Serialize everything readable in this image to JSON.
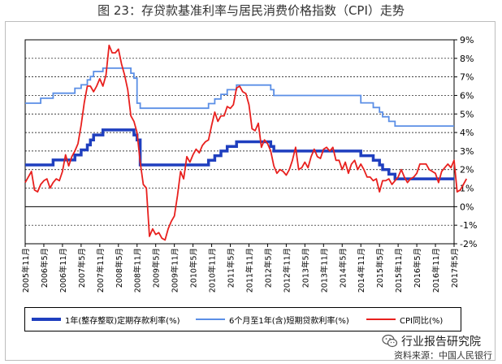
{
  "title": "图 23：存贷款基准利率与居民消费价格指数（CPI）走势",
  "watermark": {
    "icon": "wechat-icon",
    "text": "行业报告研究院"
  },
  "source": "资料来源：中国人民银行",
  "chart_data": {
    "type": "line",
    "ylim": [
      -2,
      9
    ],
    "yticks": [
      "-2%",
      "-1%",
      "0%",
      "1%",
      "2%",
      "3%",
      "4%",
      "5%",
      "6%",
      "7%",
      "8%",
      "9%"
    ],
    "x_start": "2005-11",
    "x_end": "2017-05",
    "xticks": [
      "2005年11月",
      "2006年5月",
      "2006年11月",
      "2007年5月",
      "2007年11月",
      "2008年5月",
      "2008年11月",
      "2009年5月",
      "2009年11月",
      "2010年5月",
      "2010年11月",
      "2011年5月",
      "2011年11月",
      "2012年5月",
      "2012年11月",
      "2013年5月",
      "2013年11月",
      "2014年5月",
      "2014年11月",
      "2015年5月",
      "2015年11月",
      "2016年5月",
      "2016年11月",
      "2017年5月"
    ],
    "grid": "dashed horizontal",
    "legend_position": "bottom",
    "colors": {
      "deposit": "#1f3fbf",
      "loan": "#5b8fe6",
      "cpi": "#e8201e"
    },
    "series": [
      {
        "name": "1年(整存整取)定期存款利率(%)",
        "key": "deposit",
        "steps": [
          [
            "2005-11",
            2.25
          ],
          [
            "2006-08",
            2.52
          ],
          [
            "2007-03",
            2.79
          ],
          [
            "2007-05",
            3.06
          ],
          [
            "2007-07",
            3.33
          ],
          [
            "2007-08",
            3.6
          ],
          [
            "2007-09",
            3.87
          ],
          [
            "2007-12",
            4.14
          ],
          [
            "2008-10",
            3.87
          ],
          [
            "2008-11",
            3.6
          ],
          [
            "2008-12",
            2.25
          ],
          [
            "2010-10",
            2.5
          ],
          [
            "2010-12",
            2.75
          ],
          [
            "2011-02",
            3.0
          ],
          [
            "2011-04",
            3.25
          ],
          [
            "2011-07",
            3.5
          ],
          [
            "2012-06",
            3.25
          ],
          [
            "2012-07",
            3.0
          ],
          [
            "2014-11",
            2.75
          ],
          [
            "2015-03",
            2.5
          ],
          [
            "2015-05",
            2.25
          ],
          [
            "2015-06",
            2.0
          ],
          [
            "2015-08",
            1.75
          ],
          [
            "2015-10",
            1.5
          ],
          [
            "2017-05",
            1.5
          ]
        ]
      },
      {
        "name": "6个月至1年(含)短期贷款利率(%)",
        "key": "loan",
        "steps": [
          [
            "2005-11",
            5.58
          ],
          [
            "2006-04",
            5.85
          ],
          [
            "2006-08",
            6.12
          ],
          [
            "2007-03",
            6.39
          ],
          [
            "2007-05",
            6.57
          ],
          [
            "2007-07",
            6.84
          ],
          [
            "2007-08",
            7.02
          ],
          [
            "2007-09",
            7.29
          ],
          [
            "2007-12",
            7.47
          ],
          [
            "2008-09",
            7.2
          ],
          [
            "2008-10",
            6.93
          ],
          [
            "2008-11",
            5.58
          ],
          [
            "2008-12",
            5.31
          ],
          [
            "2010-10",
            5.56
          ],
          [
            "2010-12",
            5.81
          ],
          [
            "2011-02",
            6.06
          ],
          [
            "2011-04",
            6.31
          ],
          [
            "2011-07",
            6.56
          ],
          [
            "2012-06",
            6.31
          ],
          [
            "2012-07",
            6.0
          ],
          [
            "2014-11",
            5.6
          ],
          [
            "2015-03",
            5.35
          ],
          [
            "2015-05",
            5.1
          ],
          [
            "2015-06",
            4.85
          ],
          [
            "2015-08",
            4.6
          ],
          [
            "2015-10",
            4.35
          ],
          [
            "2017-05",
            4.35
          ]
        ]
      },
      {
        "name": "CPI同比(%)",
        "key": "cpi",
        "values": [
          1.3,
          1.6,
          1.9,
          0.9,
          0.8,
          1.2,
          1.4,
          1.5,
          1.0,
          1.3,
          1.5,
          1.4,
          1.9,
          2.8,
          2.2,
          2.7,
          3.0,
          3.4,
          4.4,
          5.6,
          6.5,
          6.5,
          6.2,
          6.5,
          6.9,
          6.5,
          7.1,
          8.7,
          8.3,
          8.3,
          8.5,
          7.7,
          7.1,
          6.3,
          4.9,
          4.6,
          4.0,
          2.4,
          1.2,
          1.0,
          -1.6,
          -1.2,
          -1.5,
          -1.4,
          -1.7,
          -1.8,
          -1.2,
          -0.8,
          -0.5,
          0.6,
          1.9,
          1.5,
          2.7,
          2.4,
          2.8,
          3.1,
          2.9,
          3.3,
          3.5,
          3.6,
          4.4,
          5.1,
          4.6,
          4.9,
          4.9,
          5.4,
          5.3,
          5.5,
          6.4,
          6.5,
          6.2,
          6.1,
          5.5,
          4.2,
          4.1,
          4.5,
          3.2,
          3.6,
          3.4,
          3.0,
          2.2,
          1.8,
          2.0,
          1.9,
          1.7,
          2.0,
          2.5,
          3.2,
          2.0,
          2.1,
          2.4,
          2.1,
          2.7,
          3.1,
          2.7,
          2.6,
          3.1,
          3.2,
          3.0,
          3.2,
          2.5,
          2.5,
          2.0,
          2.4,
          1.8,
          2.3,
          2.5,
          2.0,
          2.3,
          2.0,
          1.6,
          1.6,
          1.4,
          1.5,
          0.8,
          1.4,
          1.4,
          1.5,
          1.2,
          1.4,
          1.6,
          2.0,
          1.6,
          1.3,
          1.5,
          1.6,
          1.8,
          2.3,
          2.3,
          2.3,
          2.0,
          1.9,
          1.8,
          1.3,
          1.9,
          2.1,
          2.3,
          2.1,
          2.5,
          0.8,
          0.9,
          1.2,
          1.5
        ]
      }
    ]
  }
}
